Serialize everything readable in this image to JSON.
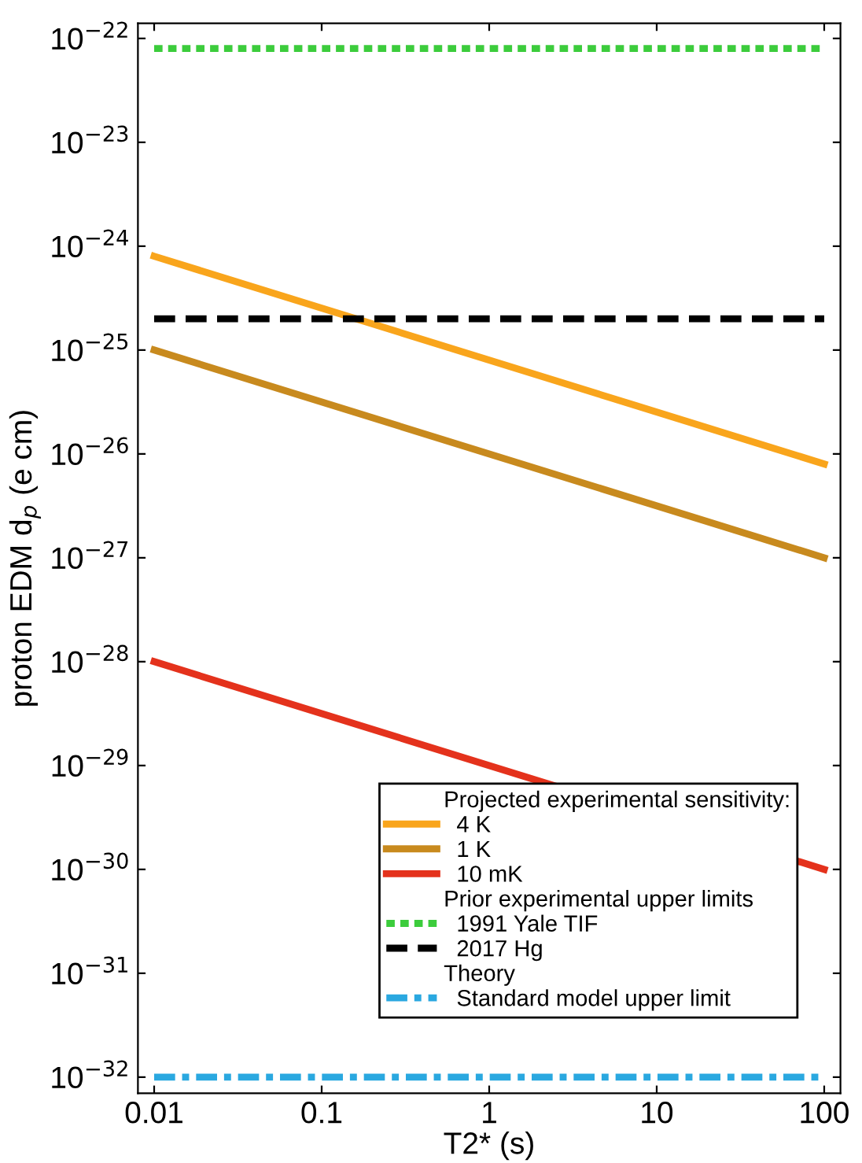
{
  "chart_data": {
    "type": "line",
    "xlabel": "T2* (s)",
    "ylabel": "proton EDM d$_{p}$ (e cm)",
    "log": "xy",
    "xlim": [
      0.008,
      125
    ],
    "ylim": [
      7e-33,
      1.4e-22
    ],
    "xticks": [
      0.01,
      0.1,
      1,
      10,
      100
    ],
    "yticks": [
      {
        "value": 1e-32,
        "label": "10$^{−32}$"
      },
      {
        "value": 1e-31,
        "label": "10$^{−31}$"
      },
      {
        "value": 1e-30,
        "label": "10$^{−30}$"
      },
      {
        "value": 1e-29,
        "label": "10$^{−29}$"
      },
      {
        "value": 1e-28,
        "label": "10$^{−28}$"
      },
      {
        "value": 1e-27,
        "label": "10$^{−27}$"
      },
      {
        "value": 1e-26,
        "label": "10$^{−26}$"
      },
      {
        "value": 1e-25,
        "label": "10$^{−25}$"
      },
      {
        "value": 1e-24,
        "label": "10$^{−24}$"
      },
      {
        "value": 1e-23,
        "label": "10$^{−23}$"
      },
      {
        "value": 1e-22,
        "label": "10$^{−22}$"
      }
    ],
    "x": [
      0.01,
      100
    ],
    "series": [
      {
        "name": "4 K",
        "color": "#f9a51c",
        "values": [
          8e-25,
          8e-27
        ],
        "line_style": "solid"
      },
      {
        "name": "1 K",
        "color": "#c88a1e",
        "values": [
          1e-25,
          1e-27
        ],
        "line_style": "solid"
      },
      {
        "name": "10 mK",
        "color": "#e4321c",
        "values": [
          1e-28,
          1e-30
        ],
        "line_style": "solid"
      },
      {
        "name": "1991 Yale TIF",
        "color": "#3ccc3c",
        "values": [
          8e-23,
          8e-23
        ],
        "line_style": "dotted"
      },
      {
        "name": "2017 Hg",
        "color": "#000000",
        "values": [
          2e-25,
          2e-25
        ],
        "line_style": "dashed"
      },
      {
        "name": "Standard model upper limit",
        "color": "#2aa8e0",
        "values": [
          1e-32,
          1e-32
        ],
        "line_style": "dashdot"
      }
    ],
    "annotations": [
      "Projected experimental sensitivity:",
      "Prior experimental upper limits",
      "Theory"
    ],
    "legend": "bottom right",
    "grid": false,
    "marker": "none"
  }
}
